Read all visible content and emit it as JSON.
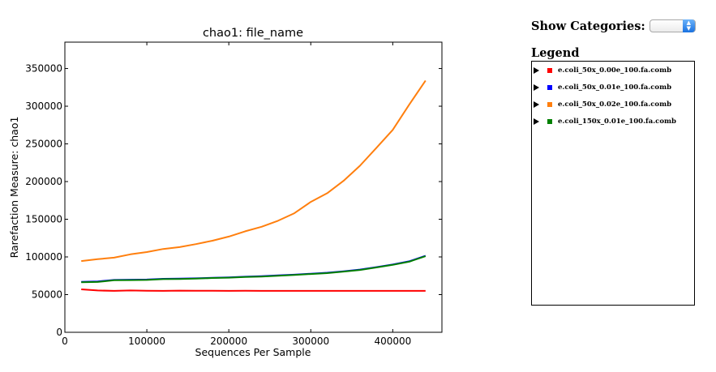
{
  "chart_data": {
    "type": "line",
    "title": "chao1: file_name",
    "xlabel": "Sequences Per Sample",
    "ylabel": "Rarefaction Measure: chao1",
    "xlim": [
      0,
      460000
    ],
    "ylim": [
      0,
      385000
    ],
    "xticks": [
      0,
      100000,
      200000,
      300000,
      400000
    ],
    "yticks": [
      0,
      50000,
      100000,
      150000,
      200000,
      250000,
      300000,
      350000
    ],
    "grid": false,
    "legend_placement": "right-panel",
    "series": [
      {
        "name": "e.coli_50x_0.00e_100.fa.comb",
        "color": "#ff0000",
        "x": [
          20000,
          40000,
          60000,
          80000,
          100000,
          120000,
          140000,
          160000,
          180000,
          200000,
          220000,
          240000,
          260000,
          280000,
          300000,
          320000,
          340000,
          360000,
          380000,
          400000,
          420000,
          440000
        ],
        "values": [
          57000,
          55500,
          55000,
          55500,
          55200,
          55000,
          55300,
          55100,
          55200,
          55000,
          55100,
          55000,
          55000,
          55000,
          55000,
          55000,
          55000,
          55000,
          55000,
          55000,
          55000,
          55000
        ]
      },
      {
        "name": "e.coli_50x_0.01e_100.fa.comb",
        "color": "#0000ff",
        "x": [
          20000,
          40000,
          60000,
          80000,
          100000,
          120000,
          140000,
          160000,
          180000,
          200000,
          220000,
          240000,
          260000,
          280000,
          300000,
          320000,
          340000,
          360000,
          380000,
          400000,
          420000,
          440000
        ],
        "values": [
          67000,
          67500,
          69500,
          69800,
          70000,
          71000,
          71200,
          71600,
          72300,
          72800,
          73800,
          74400,
          75500,
          76500,
          77800,
          79000,
          81000,
          83200,
          86500,
          90000,
          94200,
          101500
        ]
      },
      {
        "name": "e.coli_50x_0.02e_100.fa.comb",
        "color": "#ff7f0e",
        "x": [
          20000,
          40000,
          60000,
          80000,
          100000,
          120000,
          140000,
          160000,
          180000,
          200000,
          220000,
          240000,
          260000,
          280000,
          300000,
          320000,
          340000,
          360000,
          380000,
          400000,
          420000,
          440000
        ],
        "values": [
          94500,
          97000,
          99000,
          103500,
          106500,
          110500,
          113000,
          117000,
          121500,
          127000,
          134000,
          140000,
          148000,
          158000,
          173000,
          184500,
          201000,
          221000,
          244500,
          268500,
          302000,
          334000
        ]
      },
      {
        "name": "e.coli_150x_0.01e_100.fa.comb",
        "color": "#008000",
        "x": [
          20000,
          40000,
          60000,
          80000,
          100000,
          120000,
          140000,
          160000,
          180000,
          200000,
          220000,
          240000,
          260000,
          280000,
          300000,
          320000,
          340000,
          360000,
          380000,
          400000,
          420000,
          440000
        ],
        "values": [
          66500,
          66800,
          69000,
          69300,
          69500,
          70500,
          70800,
          71200,
          72000,
          72500,
          73300,
          73900,
          75000,
          76000,
          77300,
          78500,
          80500,
          82700,
          86000,
          89500,
          93700,
          101000
        ]
      }
    ]
  },
  "controls": {
    "show_categories_label": "Show Categories:",
    "selected_value": "",
    "legend_title": "Legend"
  }
}
